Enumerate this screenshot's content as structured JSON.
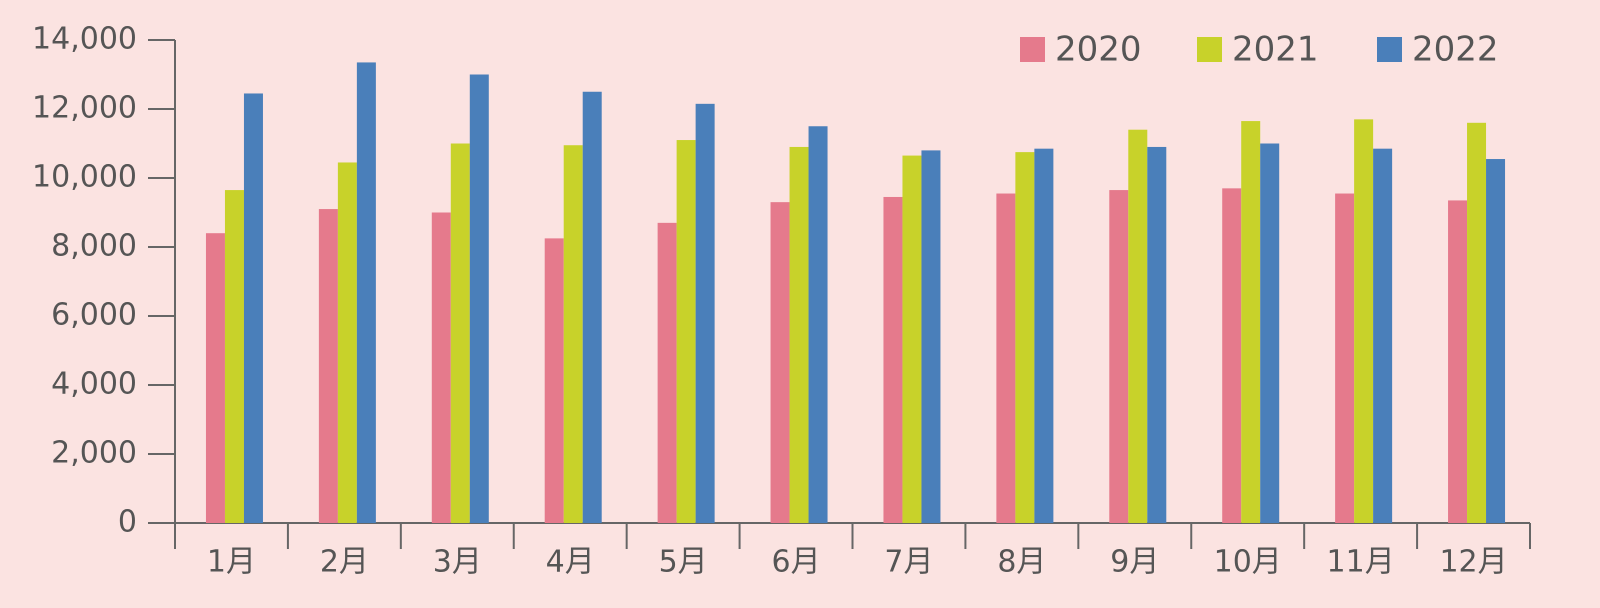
{
  "chart_data": {
    "type": "bar",
    "categories": [
      "1月",
      "2月",
      "3月",
      "4月",
      "5月",
      "6月",
      "7月",
      "8月",
      "9月",
      "10月",
      "11月",
      "12月"
    ],
    "series": [
      {
        "name": "2020",
        "color": "#e57a8c",
        "values": [
          8400,
          9100,
          9000,
          8250,
          8700,
          9300,
          9450,
          9550,
          9650,
          9700,
          9550,
          9350
        ]
      },
      {
        "name": "2021",
        "color": "#c8d22a",
        "values": [
          9650,
          10450,
          11000,
          10950,
          11100,
          10900,
          10650,
          10750,
          11400,
          11650,
          11700,
          11600
        ]
      },
      {
        "name": "2022",
        "color": "#4a7fba",
        "values": [
          12450,
          13350,
          13000,
          12500,
          12150,
          11500,
          10800,
          10850,
          10900,
          11000,
          10850,
          10550
        ]
      }
    ],
    "ylim": [
      0,
      14000
    ],
    "yticks": [
      0,
      {
        "value": 2000,
        "label": "2,000"
      },
      {
        "value": 4000,
        "label": "4,000"
      },
      {
        "value": 6000,
        "label": "6,000"
      },
      {
        "value": 8000,
        "label": "8,000"
      },
      {
        "value": 10000,
        "label": "10,000"
      },
      {
        "value": 12000,
        "label": "12,000"
      },
      {
        "value": 14000,
        "label": "14,000"
      }
    ],
    "grid": false,
    "legend": "top-right"
  }
}
